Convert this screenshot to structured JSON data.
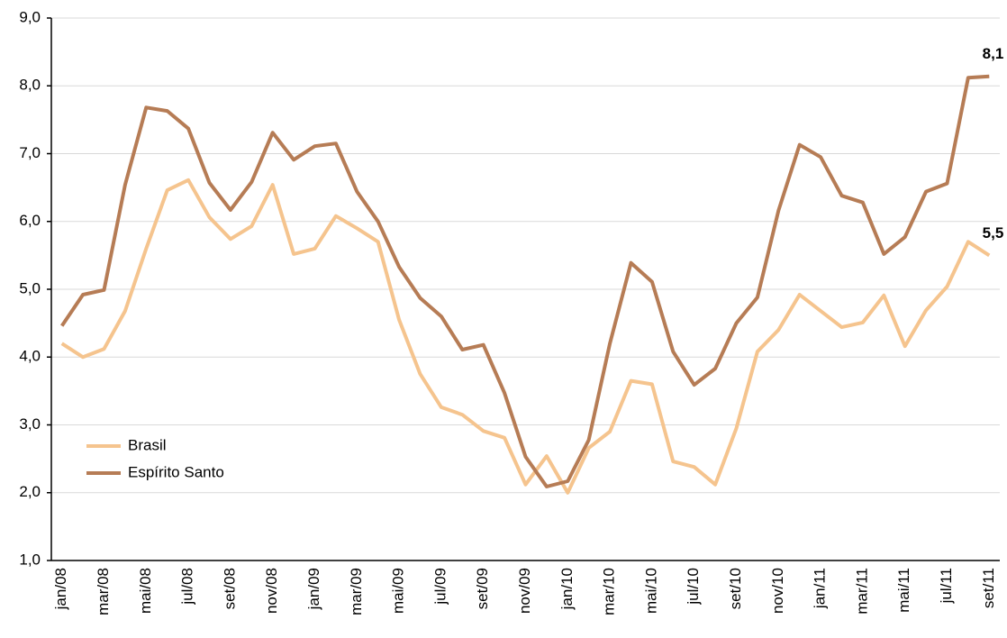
{
  "chart_data": {
    "type": "line",
    "categories": [
      "jan/08",
      null,
      "mar/08",
      null,
      "mai/08",
      null,
      "jul/08",
      null,
      "set/08",
      null,
      "nov/08",
      null,
      "jan/09",
      null,
      "mar/09",
      null,
      "mai/09",
      null,
      "jul/09",
      null,
      "set/09",
      null,
      "nov/09",
      null,
      "jan/10",
      null,
      "mar/10",
      null,
      "mai/10",
      null,
      "jul/10",
      null,
      "set/10",
      null,
      "nov/10",
      null,
      "jan/11",
      null,
      "mar/11",
      null,
      "mai/11",
      null,
      "jul/11",
      null,
      "set/11"
    ],
    "series": [
      {
        "name": "Brasil",
        "color": "#f5c48e",
        "values": [
          4.2,
          4.0,
          4.12,
          4.68,
          5.6,
          6.46,
          6.61,
          6.06,
          5.74,
          5.93,
          6.54,
          5.52,
          5.6,
          6.08,
          5.9,
          5.7,
          4.55,
          3.75,
          3.26,
          3.15,
          2.91,
          2.81,
          2.12,
          2.54,
          2.0,
          2.66,
          2.9,
          3.65,
          3.6,
          2.46,
          2.38,
          2.12,
          2.95,
          4.08,
          4.4,
          4.92,
          4.68,
          4.44,
          4.51,
          4.91,
          4.16,
          4.69,
          5.04,
          5.7,
          5.5
        ],
        "value_labels": [
          null,
          null,
          null,
          null,
          null,
          null,
          null,
          null,
          null,
          null,
          null,
          null,
          null,
          null,
          null,
          null,
          null,
          null,
          null,
          null,
          null,
          null,
          null,
          null,
          null,
          null,
          null,
          null,
          null,
          null,
          null,
          null,
          null,
          null,
          null,
          null,
          null,
          null,
          null,
          null,
          null,
          null,
          null,
          null,
          "5,5"
        ]
      },
      {
        "name": "Espírito Santo",
        "color": "#b67c55",
        "values": [
          4.46,
          4.92,
          4.99,
          6.54,
          7.68,
          7.63,
          7.37,
          6.57,
          6.17,
          6.58,
          7.31,
          6.91,
          7.11,
          7.15,
          6.44,
          6.0,
          5.33,
          4.87,
          4.6,
          4.11,
          4.18,
          3.47,
          2.53,
          2.09,
          2.17,
          2.78,
          4.2,
          5.39,
          5.11,
          4.08,
          3.59,
          3.83,
          4.5,
          4.88,
          6.16,
          7.13,
          6.95,
          6.38,
          6.28,
          5.52,
          5.77,
          6.44,
          6.56,
          8.12,
          8.14
        ],
        "value_labels": [
          null,
          null,
          null,
          null,
          null,
          null,
          null,
          null,
          null,
          null,
          null,
          null,
          null,
          null,
          null,
          null,
          null,
          null,
          null,
          null,
          null,
          null,
          null,
          null,
          null,
          null,
          null,
          null,
          null,
          null,
          null,
          null,
          null,
          null,
          null,
          null,
          null,
          null,
          null,
          null,
          null,
          null,
          null,
          null,
          "8,1"
        ]
      }
    ],
    "ylim": [
      1,
      9
    ],
    "yticks": [
      {
        "value": 1,
        "label": "1,0"
      },
      {
        "value": 2,
        "label": "2,0"
      },
      {
        "value": 3,
        "label": "3,0"
      },
      {
        "value": 4,
        "label": "4,0"
      },
      {
        "value": 5,
        "label": "5,0"
      },
      {
        "value": 6,
        "label": "6,0"
      },
      {
        "value": 7,
        "label": "7,0"
      },
      {
        "value": 8,
        "label": "8,0"
      },
      {
        "value": 9,
        "label": "9,0"
      }
    ],
    "grid": true,
    "legend": "lower-left"
  }
}
